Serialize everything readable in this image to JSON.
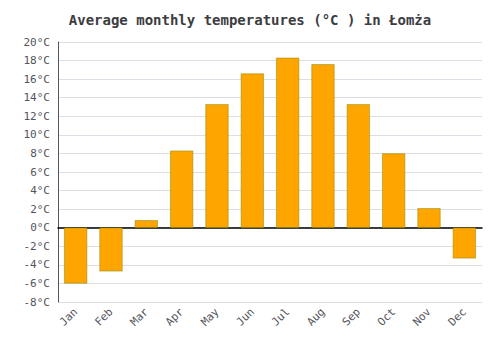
{
  "chart_data": {
    "type": "bar",
    "title": "Average monthly temperatures (°C ) in Łomża",
    "categories": [
      "Jan",
      "Feb",
      "Mar",
      "Apr",
      "May",
      "Jun",
      "Jul",
      "Aug",
      "Sep",
      "Oct",
      "Nov",
      "Dec"
    ],
    "values": [
      -6.0,
      -4.7,
      0.8,
      8.3,
      13.3,
      16.6,
      18.3,
      17.6,
      13.3,
      8.0,
      2.1,
      -3.3
    ],
    "color": "#FFA500",
    "ylim": [
      -8,
      20
    ],
    "yticks": [
      {
        "value": -8,
        "label": "-8°C"
      },
      {
        "value": -6,
        "label": "-6°C"
      },
      {
        "value": -4,
        "label": "-4°C"
      },
      {
        "value": -2,
        "label": "-2°C"
      },
      {
        "value": 0,
        "label": "0°C"
      },
      {
        "value": 2,
        "label": "2°C"
      },
      {
        "value": 4,
        "label": "4°C"
      },
      {
        "value": 6,
        "label": "6°C"
      },
      {
        "value": 8,
        "label": "8°C"
      },
      {
        "value": 10,
        "label": "10°C"
      },
      {
        "value": 12,
        "label": "12°C"
      },
      {
        "value": 14,
        "label": "14°C"
      },
      {
        "value": 16,
        "label": "16°C"
      },
      {
        "value": 18,
        "label": "18°C"
      },
      {
        "value": 20,
        "label": "20°C"
      }
    ],
    "grid": true
  }
}
